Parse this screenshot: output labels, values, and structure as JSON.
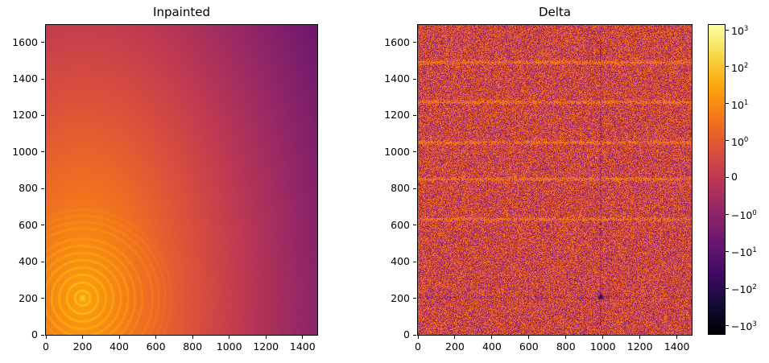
{
  "figure": {
    "background": "#ffffff",
    "kind": "matplotlib-style two-panel heatmap figure with shared symlog colorbar"
  },
  "chart_data": [
    {
      "type": "heatmap",
      "title": "Inpainted",
      "xlim": [
        0,
        1480
      ],
      "ylim": [
        0,
        1695
      ],
      "xticks": [
        0,
        200,
        400,
        600,
        800,
        1000,
        1200,
        1400
      ],
      "yticks": [
        0,
        200,
        400,
        600,
        800,
        1000,
        1200,
        1400,
        1600
      ],
      "xlabel": "",
      "ylabel": "",
      "grid": false,
      "colormap": "inferno",
      "content": {
        "description": "Smooth brightness field: bright orange point source in the lower-left fading continuously to dark purple toward the upper-right corner, with faint concentric diffraction-like rings around the source.",
        "source_center_xy": [
          200,
          200
        ],
        "ring_radii": [
          41,
          85,
          128,
          168,
          209,
          248,
          287,
          325,
          382,
          417,
          451,
          483
        ],
        "ring_zone_max_radius": 540,
        "value_t_at_source": 0.79,
        "value_t_at_far_corner": 0.3,
        "anisotropy_y_factor": 0.55,
        "effective_max_distance": 1520
      }
    },
    {
      "type": "heatmap",
      "title": "Delta",
      "xlim": [
        0,
        1480
      ],
      "ylim": [
        0,
        1695
      ],
      "xticks": [
        0,
        200,
        400,
        600,
        800,
        1000,
        1200,
        1400
      ],
      "yticks": [
        0,
        200,
        400,
        600,
        800,
        1000,
        1200,
        1400,
        1600
      ],
      "xlabel": "",
      "ylabel": "",
      "grid": false,
      "colormap": "inferno",
      "content": {
        "description": "Residual noise map: speckled red/orange/purple noise around zero, with faint bright horizontal streaks, a dark dotted horizontal line near y=205, a faint dark vertical streak near x=988 and a dark spot at (988, 207).",
        "base_t": 0.555,
        "noise_amplitude_t": 0.17,
        "bright_streaks_y": [
          1490,
          1272,
          1052,
          852,
          632
        ],
        "dark_dotted_streak_y": 205,
        "dark_vertical_streak_x": 988,
        "dark_spot_xy": [
          988,
          207
        ]
      }
    }
  ],
  "colorbar": {
    "scale": "symlog",
    "colormap": "inferno",
    "orientation": "vertical",
    "ticks": [
      {
        "mantissa": "10",
        "exponent": "3"
      },
      {
        "mantissa": "10",
        "exponent": "2"
      },
      {
        "mantissa": "10",
        "exponent": "1"
      },
      {
        "mantissa": "10",
        "exponent": "0"
      },
      {
        "mantissa": "0",
        "exponent": ""
      },
      {
        "mantissa": "−10",
        "exponent": "0"
      },
      {
        "mantissa": "−10",
        "exponent": "1"
      },
      {
        "mantissa": "−10",
        "exponent": "2"
      },
      {
        "mantissa": "−10",
        "exponent": "3"
      }
    ],
    "colormap_stops": [
      [
        0.0,
        "#000004"
      ],
      [
        0.1,
        "#160b39"
      ],
      [
        0.2,
        "#420a68"
      ],
      [
        0.3,
        "#6a176e"
      ],
      [
        0.4,
        "#932667"
      ],
      [
        0.5,
        "#bc3754"
      ],
      [
        0.6,
        "#dd513a"
      ],
      [
        0.7,
        "#f3761b"
      ],
      [
        0.8,
        "#fca50a"
      ],
      [
        0.9,
        "#f6d746"
      ],
      [
        1.0,
        "#fcffa4"
      ]
    ]
  }
}
